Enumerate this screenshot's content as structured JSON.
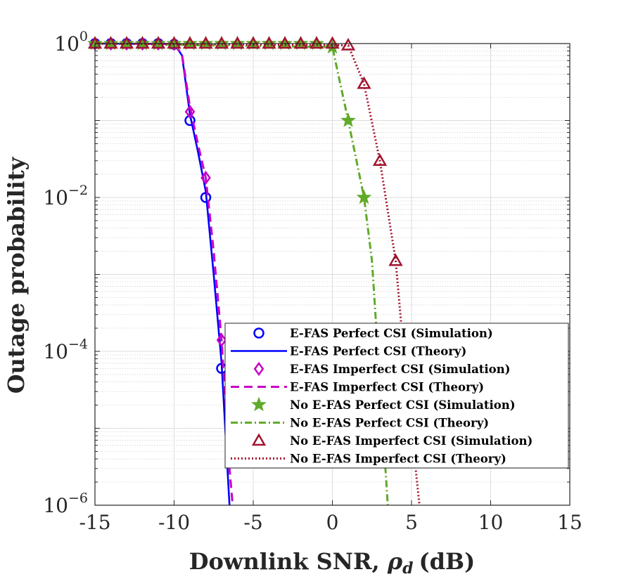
{
  "chart_data": {
    "type": "line",
    "title": "",
    "xlabel_text": "Downlink SNR,",
    "xlabel_symbol": "ρ",
    "xlabel_subscript": "d",
    "xlabel_unit": "(dB)",
    "ylabel": "Outage probability",
    "xlim": [
      -15,
      15
    ],
    "ylim": [
      1e-06,
      1
    ],
    "yscale": "log",
    "grid": true,
    "legend_location": "bottom-right",
    "xticks": [
      -15,
      -10,
      -5,
      0,
      5,
      10,
      15
    ],
    "xtick_labels": [
      "-15",
      "-10",
      "-5",
      "0",
      "5",
      "10",
      "15"
    ],
    "yticks": [
      {
        "value": 1,
        "base": "10",
        "exp": "0"
      },
      {
        "value": 0.01,
        "base": "10",
        "exp": "−2"
      },
      {
        "value": 0.0001,
        "base": "10",
        "exp": "−4"
      },
      {
        "value": 1e-06,
        "base": "10",
        "exp": "−6"
      }
    ],
    "series": [
      {
        "name": "E-FAS Perfect CSI (Simulation)",
        "style": "marker",
        "marker": "circle",
        "color": "#0000FF",
        "x": [
          -15,
          -14,
          -13,
          -12,
          -11,
          -10,
          -9,
          -8,
          -7
        ],
        "y": [
          1,
          1,
          1,
          1,
          1,
          0.98,
          0.1,
          0.01,
          6e-05
        ]
      },
      {
        "name": "E-FAS Perfect CSI (Theory)",
        "style": "line",
        "dash": "solid",
        "color": "#0000FF",
        "x": [
          -15,
          -10,
          -9.5,
          -9,
          -8.5,
          -8,
          -7.5,
          -7,
          -6.5
        ],
        "y": [
          1,
          0.99,
          0.7,
          0.12,
          0.04,
          0.012,
          0.001,
          7e-05,
          1e-06
        ]
      },
      {
        "name": "E-FAS Imperfect CSI (Simulation)",
        "style": "marker",
        "marker": "diamond",
        "color": "#C800C8",
        "x": [
          -15,
          -14,
          -13,
          -12,
          -11,
          -10,
          -9,
          -8,
          -7
        ],
        "y": [
          1,
          1,
          1,
          1,
          1,
          0.99,
          0.13,
          0.018,
          0.00014
        ]
      },
      {
        "name": "E-FAS Imperfect CSI (Theory)",
        "style": "line",
        "dash": "dashed",
        "color": "#C800C8",
        "x": [
          -15,
          -10,
          -9.5,
          -9,
          -8.5,
          -8,
          -7.5,
          -7,
          -6.5,
          -6.3
        ],
        "y": [
          1,
          0.99,
          0.72,
          0.15,
          0.05,
          0.018,
          0.002,
          0.00014,
          3e-06,
          1e-06
        ]
      },
      {
        "name": "No E-FAS Perfect CSI (Simulation)",
        "style": "marker",
        "marker": "star",
        "color": "#5FAA28",
        "x": [
          -15,
          -14,
          -13,
          -12,
          -11,
          -10,
          -9,
          -8,
          -7,
          -6,
          -5,
          -4,
          -3,
          -2,
          -1,
          0,
          1,
          2
        ],
        "y": [
          1,
          1,
          1,
          1,
          1,
          1,
          1,
          1,
          1,
          1,
          1,
          1,
          1,
          1,
          1,
          0.9,
          0.1,
          0.01
        ]
      },
      {
        "name": "No E-FAS Perfect CSI (Theory)",
        "style": "line",
        "dash": "dashdot",
        "color": "#5FAA28",
        "x": [
          -15,
          0,
          1,
          2,
          2.5,
          3,
          3.5
        ],
        "y": [
          1,
          0.9,
          0.1,
          0.01,
          0.0015,
          4e-05,
          1e-06
        ]
      },
      {
        "name": "No E-FAS Imperfect CSI (Simulation)",
        "style": "marker",
        "marker": "triangle",
        "color": "#A2142F",
        "x": [
          -15,
          -14,
          -13,
          -12,
          -11,
          -10,
          -9,
          -8,
          -7,
          -6,
          -5,
          -4,
          -3,
          -2,
          -1,
          0,
          1,
          2,
          3,
          4
        ],
        "y": [
          1,
          1,
          1,
          1,
          1,
          1,
          1,
          1,
          1,
          1,
          1,
          1,
          1,
          1,
          1,
          1,
          0.95,
          0.3,
          0.03,
          0.0015
        ]
      },
      {
        "name": "No E-FAS Imperfect CSI (Theory)",
        "style": "line",
        "dash": "dotted",
        "color": "#A2142F",
        "x": [
          -15,
          1,
          2,
          3,
          4,
          4.5,
          5,
          5.5
        ],
        "y": [
          1,
          0.95,
          0.3,
          0.03,
          0.0015,
          0.0001,
          1e-05,
          1e-06
        ]
      }
    ]
  }
}
